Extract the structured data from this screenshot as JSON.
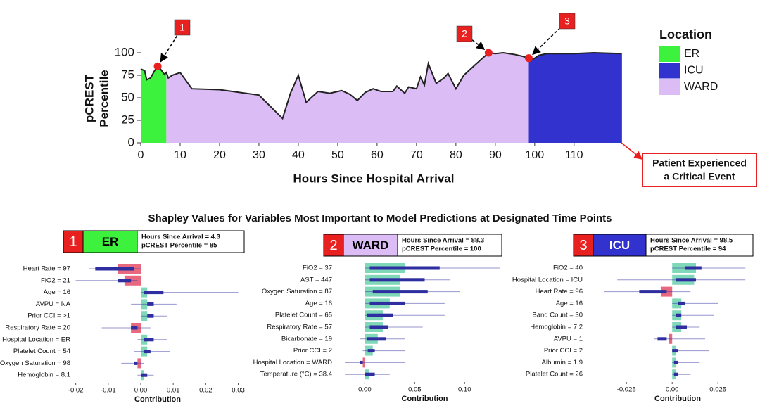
{
  "chart_data": [
    {
      "type": "area",
      "x": [
        0,
        1,
        1.5,
        2.5,
        3.5,
        4.3,
        5,
        6,
        6.5,
        7,
        8,
        10,
        13,
        20,
        30,
        36,
        38,
        40,
        42,
        45,
        48,
        51,
        53,
        55,
        57,
        59,
        61,
        64,
        65,
        67,
        68,
        70,
        71,
        72,
        73,
        75,
        77,
        78,
        80,
        82,
        85,
        88.3,
        90,
        92,
        95,
        97,
        98.5,
        99,
        100,
        101,
        103,
        110,
        115,
        122
      ],
      "values": [
        82,
        80,
        70,
        72,
        80,
        85,
        82,
        76,
        78,
        72,
        75,
        78,
        60,
        59,
        53,
        27,
        55,
        75,
        45,
        57,
        55,
        58,
        54,
        47,
        56,
        60,
        57,
        57,
        63,
        55,
        62,
        60,
        73,
        64,
        88,
        66,
        72,
        77,
        60,
        75,
        87,
        100,
        99,
        100,
        98,
        96,
        94,
        92,
        94,
        97,
        99,
        99,
        100,
        99
      ],
      "xlim": [
        0,
        122
      ],
      "ylim": [
        0,
        100
      ],
      "xticks": [
        0,
        10,
        20,
        30,
        40,
        50,
        60,
        70,
        80,
        90,
        100,
        110
      ],
      "yticks": [
        0,
        25,
        50,
        75,
        100
      ],
      "xlabel": "Hours Since Hospital Arrival",
      "ylabel": [
        "pCREST",
        "Percentile"
      ],
      "line_color": "#222222",
      "legend_title": "Location",
      "regions": [
        {
          "name": "ER",
          "color": "#3df23d",
          "start": 0,
          "end": 6.5
        },
        {
          "name": "ICU",
          "color": "#3232cf",
          "start": 98.5,
          "end": 122
        },
        {
          "name": "WARD",
          "color": "#dcbcf5",
          "start": 6.5,
          "end": 98.5
        }
      ],
      "marker_color": "#e8201f",
      "markers": [
        {
          "label": "1",
          "x": 4.3,
          "y": 85
        },
        {
          "label": "2",
          "x": 88.3,
          "y": 100
        },
        {
          "label": "3",
          "x": 98.5,
          "y": 94
        }
      ],
      "annotation": [
        "Patient Experienced",
        "a Critical Event"
      ]
    },
    {
      "type": "shapley",
      "badge": "1",
      "label": "ER",
      "color": "#3df23d",
      "label_color": "#000000",
      "info": [
        "Hours Since Arrival = 4.3",
        "pCREST Percentile = 85"
      ],
      "categories": [
        "Heart Rate = 97",
        "FiO2 = 21",
        "Age = 16",
        "AVPU = NA",
        "Prior CCI = >1",
        "Respiratory Rate = 20",
        "Hospital Location = ER",
        "Platelet Count = 54",
        "Oxygen Saturation = 98",
        "Hemoglobin = 8.1"
      ],
      "values": [
        -0.007,
        -0.005,
        0.002,
        0.002,
        0.002,
        -0.003,
        0.002,
        0.002,
        -0.001,
        0.001
      ],
      "iqr": [
        [
          -0.014,
          -0.002
        ],
        [
          -0.007,
          -0.003
        ],
        [
          0.001,
          0.007
        ],
        [
          0.002,
          0.004
        ],
        [
          0.002,
          0.004
        ],
        [
          -0.003,
          -0.001
        ],
        [
          0.001,
          0.004
        ],
        [
          0.001,
          0.003
        ],
        [
          -0.002,
          -0.001
        ],
        [
          0,
          0.002
        ]
      ],
      "range": [
        [
          -0.016,
          0
        ],
        [
          -0.02,
          -0.001
        ],
        [
          0,
          0.03
        ],
        [
          -0.003,
          0.011
        ],
        [
          0,
          0.008
        ],
        [
          -0.012,
          0.003
        ],
        [
          -0.001,
          0.008
        ],
        [
          -0.002,
          0.009
        ],
        [
          -0.006,
          0.001
        ],
        [
          -0.001,
          0.004
        ]
      ],
      "xlim": [
        -0.021,
        0.0314
      ],
      "xticks": [
        -0.02,
        -0.01,
        {
          "value": 0,
          "label": "0.00"
        },
        0.01,
        0.02,
        0.03
      ],
      "xlabel": "Contribution",
      "positive_color": "#7fd8b8",
      "negative_color": "#e8687f",
      "interval_color": "#2e2ea0"
    },
    {
      "type": "shapley",
      "badge": "2",
      "label": "WARD",
      "color": "#dcbcf5",
      "label_color": "#000000",
      "info": [
        "Hours Since Arrival = 88.3",
        "pCREST Percentile = 100"
      ],
      "categories": [
        "FiO2 = 37",
        "AST = 447",
        "Oxygen Saturation = 87",
        "Age = 16",
        "Platelet Count = 65",
        "Respiratory Rate = 57",
        "Bicarbonate = 19",
        "Prior CCI = 2",
        "Hospital Location = WARD",
        "Temperature (°C) = 38.4"
      ],
      "values": [
        0.04,
        0.035,
        0.035,
        0.025,
        0.018,
        0.018,
        0.013,
        0.008,
        -0.002,
        0.004
      ],
      "iqr": [
        [
          0.005,
          0.075
        ],
        [
          0.005,
          0.06
        ],
        [
          0.008,
          0.063
        ],
        [
          0.005,
          0.04
        ],
        [
          0.002,
          0.028
        ],
        [
          0.005,
          0.023
        ],
        [
          0.002,
          0.021
        ],
        [
          0.003,
          0.01
        ],
        [
          -0.005,
          -0.002
        ],
        [
          0,
          0.01
        ]
      ],
      "range": [
        [
          0,
          0.135
        ],
        [
          0,
          0.085
        ],
        [
          0,
          0.095
        ],
        [
          0,
          0.08
        ],
        [
          0,
          0.08
        ],
        [
          0,
          0.058
        ],
        [
          -0.005,
          0.04
        ],
        [
          -0.002,
          0.04
        ],
        [
          -0.02,
          0.04
        ],
        [
          -0.02,
          0.025
        ]
      ],
      "xlim": [
        -0.02,
        0.14
      ],
      "xticks": [
        {
          "value": 0,
          "label": "0.00"
        },
        0.05,
        {
          "value": 0.1,
          "label": "0.10"
        }
      ],
      "xlabel": "Contribution",
      "positive_color": "#7fd8b8",
      "negative_color": "#e8687f",
      "interval_color": "#2e2ea0"
    },
    {
      "type": "shapley",
      "badge": "3",
      "label": "ICU",
      "color": "#3232cf",
      "label_color": "#ffffff",
      "info": [
        "Hours Since Arrival = 98.5",
        "pCREST Percentile = 94"
      ],
      "categories": [
        "FiO2 = 40",
        "Hospital Location = ICU",
        "Heart Rate = 96",
        "Age = 16",
        "Band Count = 30",
        "Hemoglobin = 7.2",
        "AVPU = 1",
        "Prior CCI = 2",
        "Albumin = 1.9",
        "Platelet Count = 26"
      ],
      "values": [
        0.013,
        0.012,
        -0.006,
        0.005,
        0.005,
        0.005,
        -0.002,
        0.002,
        0.002,
        0.002
      ],
      "iqr": [
        [
          0.007,
          0.016
        ],
        [
          0.002,
          0.013
        ],
        [
          -0.018,
          -0.003
        ],
        [
          0.003,
          0.007
        ],
        [
          0.002,
          0.005
        ],
        [
          0.002,
          0.008
        ],
        [
          -0.008,
          -0.003
        ],
        [
          0,
          0.003
        ],
        [
          0.001,
          0.003
        ],
        [
          0.001,
          0.003
        ]
      ],
      "range": [
        [
          0,
          0.04
        ],
        [
          -0.03,
          0.04
        ],
        [
          -0.037,
          0.01
        ],
        [
          0,
          0.025
        ],
        [
          0,
          0.023
        ],
        [
          0,
          0.015
        ],
        [
          -0.01,
          0.018
        ],
        [
          0,
          0.02
        ],
        [
          0,
          0.015
        ],
        [
          0,
          0.01
        ]
      ],
      "xlim": [
        -0.037,
        0.043
      ],
      "xticks": [
        -0.025,
        {
          "value": 0,
          "label": "0.00"
        },
        0.025
      ],
      "xlabel": "Contribution",
      "positive_color": "#7fd8b8",
      "negative_color": "#e8687f",
      "interval_color": "#2e2ea0"
    }
  ],
  "section_title": "Shapley Values for Variables Most Important to Model Predictions at Designated Time Points"
}
